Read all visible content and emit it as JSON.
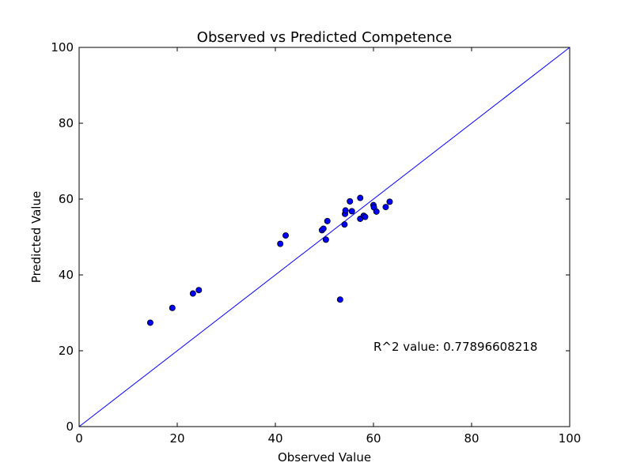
{
  "chart_data": {
    "type": "scatter",
    "title": "Observed vs Predicted Competence",
    "xlabel": "Observed Value",
    "ylabel": "Predicted Value",
    "xlim": [
      0,
      100
    ],
    "ylim": [
      0,
      100
    ],
    "xticks": [
      "0",
      "20",
      "40",
      "60",
      "80",
      "100"
    ],
    "yticks": [
      "0",
      "20",
      "40",
      "60",
      "80",
      "100"
    ],
    "grid": false,
    "annotation": "R^2 value: 0.77896608218",
    "marker_color": "#0000ff",
    "line_color": "#0000ff",
    "reference_line": {
      "x": [
        0,
        100
      ],
      "y": [
        0,
        100
      ]
    },
    "points": [
      {
        "x": 14.5,
        "y": 27.4
      },
      {
        "x": 19.0,
        "y": 31.3
      },
      {
        "x": 23.2,
        "y": 35.1
      },
      {
        "x": 24.4,
        "y": 36.0
      },
      {
        "x": 41.0,
        "y": 48.2
      },
      {
        "x": 42.1,
        "y": 50.4
      },
      {
        "x": 49.5,
        "y": 51.8
      },
      {
        "x": 49.8,
        "y": 52.2
      },
      {
        "x": 50.3,
        "y": 49.3
      },
      {
        "x": 50.6,
        "y": 54.2
      },
      {
        "x": 53.2,
        "y": 33.5
      },
      {
        "x": 54.1,
        "y": 53.3
      },
      {
        "x": 54.2,
        "y": 56.1
      },
      {
        "x": 54.3,
        "y": 57.0
      },
      {
        "x": 55.2,
        "y": 59.4
      },
      {
        "x": 55.6,
        "y": 56.8
      },
      {
        "x": 57.3,
        "y": 60.3
      },
      {
        "x": 57.3,
        "y": 54.8
      },
      {
        "x": 58.0,
        "y": 55.6
      },
      {
        "x": 58.3,
        "y": 55.3
      },
      {
        "x": 60.0,
        "y": 58.4
      },
      {
        "x": 60.1,
        "y": 57.8
      },
      {
        "x": 60.6,
        "y": 56.7
      },
      {
        "x": 62.5,
        "y": 57.9
      },
      {
        "x": 63.3,
        "y": 59.3
      }
    ]
  }
}
